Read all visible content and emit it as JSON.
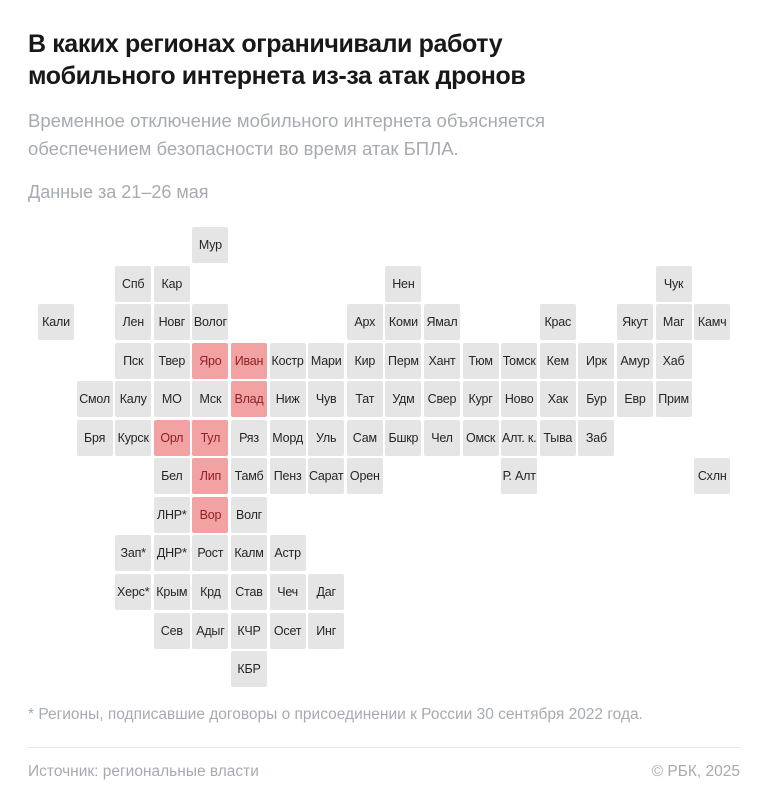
{
  "header": {
    "title_lines": [
      "В каких регионах ограничивали работу",
      "мобильного интернета из-за атак дронов"
    ],
    "subtitle_lines": [
      "Временное отключение мобильного интернета объясняется",
      "обеспечением безопасности во время атак БПЛА."
    ],
    "period": "Данные за 21–26 мая"
  },
  "footer": {
    "footnote": "* Регионы, подписавшие договоры о присоединении к России 30 сентября 2022 года.",
    "source": "Источник: региональные власти",
    "copyright": "© РБК, 2025"
  },
  "colors": {
    "highlight_bg": "#f2a2a3",
    "highlight_text": "#8e2226",
    "tile_bg": "#e5e5e6",
    "tile_text": "#242628",
    "muted_text": "#a6abb1"
  },
  "chart_data": {
    "type": "heatmap",
    "subtype": "tile-grid-cartogram",
    "title": "В каких регионах ограничивали работу мобильного интернета из-за атак дронов",
    "subtitle": "Временное отключение мобильного интернета объясняется обеспечением безопасности во время атак БПЛА.",
    "period": "Данные за 21–26 мая",
    "grid": {
      "rows": 12,
      "cols": 18
    },
    "legend": "none",
    "highlighted_regions": [
      "Яро",
      "Иван",
      "Влад",
      "Орл",
      "Тул",
      "Лип",
      "Вор"
    ],
    "tiles": [
      {
        "l": "Мур",
        "r": 1,
        "c": 4
      },
      {
        "l": "Спб",
        "r": 2,
        "c": 2
      },
      {
        "l": "Кар",
        "r": 2,
        "c": 3
      },
      {
        "l": "Нен",
        "r": 2,
        "c": 9
      },
      {
        "l": "Чук",
        "r": 2,
        "c": 16
      },
      {
        "l": "Кали",
        "r": 3,
        "c": 0
      },
      {
        "l": "Лен",
        "r": 3,
        "c": 2
      },
      {
        "l": "Новг",
        "r": 3,
        "c": 3
      },
      {
        "l": "Волог",
        "r": 3,
        "c": 4
      },
      {
        "l": "Арх",
        "r": 3,
        "c": 8
      },
      {
        "l": "Коми",
        "r": 3,
        "c": 9
      },
      {
        "l": "Ямал",
        "r": 3,
        "c": 10
      },
      {
        "l": "Крас",
        "r": 3,
        "c": 13
      },
      {
        "l": "Якут",
        "r": 3,
        "c": 15
      },
      {
        "l": "Маг",
        "r": 3,
        "c": 16
      },
      {
        "l": "Камч",
        "r": 3,
        "c": 17
      },
      {
        "l": "Пск",
        "r": 4,
        "c": 2
      },
      {
        "l": "Твер",
        "r": 4,
        "c": 3
      },
      {
        "l": "Яро",
        "r": 4,
        "c": 4,
        "h": true
      },
      {
        "l": "Иван",
        "r": 4,
        "c": 5,
        "h": true
      },
      {
        "l": "Костр",
        "r": 4,
        "c": 6
      },
      {
        "l": "Мари",
        "r": 4,
        "c": 7
      },
      {
        "l": "Кир",
        "r": 4,
        "c": 8
      },
      {
        "l": "Перм",
        "r": 4,
        "c": 9
      },
      {
        "l": "Хант",
        "r": 4,
        "c": 10
      },
      {
        "l": "Тюм",
        "r": 4,
        "c": 11
      },
      {
        "l": "Томск",
        "r": 4,
        "c": 12
      },
      {
        "l": "Кем",
        "r": 4,
        "c": 13
      },
      {
        "l": "Ирк",
        "r": 4,
        "c": 14
      },
      {
        "l": "Амур",
        "r": 4,
        "c": 15
      },
      {
        "l": "Хаб",
        "r": 4,
        "c": 16
      },
      {
        "l": "Смол",
        "r": 5,
        "c": 1
      },
      {
        "l": "Калу",
        "r": 5,
        "c": 2
      },
      {
        "l": "МО",
        "r": 5,
        "c": 3
      },
      {
        "l": "Мск",
        "r": 5,
        "c": 4
      },
      {
        "l": "Влад",
        "r": 5,
        "c": 5,
        "h": true
      },
      {
        "l": "Ниж",
        "r": 5,
        "c": 6
      },
      {
        "l": "Чув",
        "r": 5,
        "c": 7
      },
      {
        "l": "Тат",
        "r": 5,
        "c": 8
      },
      {
        "l": "Удм",
        "r": 5,
        "c": 9
      },
      {
        "l": "Свер",
        "r": 5,
        "c": 10
      },
      {
        "l": "Кург",
        "r": 5,
        "c": 11
      },
      {
        "l": "Ново",
        "r": 5,
        "c": 12
      },
      {
        "l": "Хак",
        "r": 5,
        "c": 13
      },
      {
        "l": "Бур",
        "r": 5,
        "c": 14
      },
      {
        "l": "Евр",
        "r": 5,
        "c": 15
      },
      {
        "l": "Прим",
        "r": 5,
        "c": 16
      },
      {
        "l": "Бря",
        "r": 6,
        "c": 1
      },
      {
        "l": "Курск",
        "r": 6,
        "c": 2
      },
      {
        "l": "Орл",
        "r": 6,
        "c": 3,
        "h": true
      },
      {
        "l": "Тул",
        "r": 6,
        "c": 4,
        "h": true
      },
      {
        "l": "Ряз",
        "r": 6,
        "c": 5
      },
      {
        "l": "Морд",
        "r": 6,
        "c": 6
      },
      {
        "l": "Уль",
        "r": 6,
        "c": 7
      },
      {
        "l": "Сам",
        "r": 6,
        "c": 8
      },
      {
        "l": "Бшкр",
        "r": 6,
        "c": 9
      },
      {
        "l": "Чел",
        "r": 6,
        "c": 10
      },
      {
        "l": "Омск",
        "r": 6,
        "c": 11
      },
      {
        "l": "Алт. к.",
        "r": 6,
        "c": 12
      },
      {
        "l": "Тыва",
        "r": 6,
        "c": 13
      },
      {
        "l": "Заб",
        "r": 6,
        "c": 14
      },
      {
        "l": "Бел",
        "r": 7,
        "c": 3
      },
      {
        "l": "Лип",
        "r": 7,
        "c": 4,
        "h": true
      },
      {
        "l": "Тамб",
        "r": 7,
        "c": 5
      },
      {
        "l": "Пенз",
        "r": 7,
        "c": 6
      },
      {
        "l": "Сарат",
        "r": 7,
        "c": 7
      },
      {
        "l": "Орен",
        "r": 7,
        "c": 8
      },
      {
        "l": "Р. Алт",
        "r": 7,
        "c": 12
      },
      {
        "l": "Схлн",
        "r": 7,
        "c": 17
      },
      {
        "l": "ЛНР*",
        "r": 8,
        "c": 3
      },
      {
        "l": "Вор",
        "r": 8,
        "c": 4,
        "h": true
      },
      {
        "l": "Волг",
        "r": 8,
        "c": 5
      },
      {
        "l": "Зап*",
        "r": 9,
        "c": 2
      },
      {
        "l": "ДНР*",
        "r": 9,
        "c": 3
      },
      {
        "l": "Рост",
        "r": 9,
        "c": 4
      },
      {
        "l": "Калм",
        "r": 9,
        "c": 5
      },
      {
        "l": "Астр",
        "r": 9,
        "c": 6
      },
      {
        "l": "Херс*",
        "r": 10,
        "c": 2
      },
      {
        "l": "Крым",
        "r": 10,
        "c": 3
      },
      {
        "l": "Крд",
        "r": 10,
        "c": 4
      },
      {
        "l": "Став",
        "r": 10,
        "c": 5
      },
      {
        "l": "Чеч",
        "r": 10,
        "c": 6
      },
      {
        "l": "Даг",
        "r": 10,
        "c": 7
      },
      {
        "l": "Сев",
        "r": 11,
        "c": 3
      },
      {
        "l": "Адыг",
        "r": 11,
        "c": 4
      },
      {
        "l": "КЧР",
        "r": 11,
        "c": 5
      },
      {
        "l": "Осет",
        "r": 11,
        "c": 6
      },
      {
        "l": "Инг",
        "r": 11,
        "c": 7
      },
      {
        "l": "КБР",
        "r": 12,
        "c": 5
      }
    ]
  }
}
